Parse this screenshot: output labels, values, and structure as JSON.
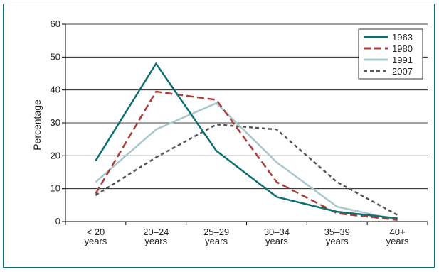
{
  "chart_data": {
    "type": "line",
    "categories": [
      "< 20 years",
      "20–24 years",
      "25–29 years",
      "30–34 years",
      "35–39 years",
      "40+ years"
    ],
    "category_lines": [
      [
        "< 20",
        "years"
      ],
      [
        "20–24",
        "years"
      ],
      [
        "25–29",
        "years"
      ],
      [
        "30–34",
        "years"
      ],
      [
        "35–39",
        "years"
      ],
      [
        "40+",
        "years"
      ]
    ],
    "ylabel": "Percentage",
    "xlabel": "",
    "title": "",
    "ylim": [
      0,
      60
    ],
    "yticks": [
      0,
      10,
      20,
      30,
      40,
      50,
      60
    ],
    "grid": "horizontal",
    "legend_position": "top-right",
    "series": [
      {
        "name": "1963",
        "values": [
          18.5,
          48,
          21.5,
          7.5,
          3,
          1
        ],
        "color": "#0f6e6e",
        "style": "solid"
      },
      {
        "name": "1980",
        "values": [
          8.5,
          39.5,
          37,
          12,
          2.5,
          0.5
        ],
        "color": "#a83e3a",
        "style": "dashed"
      },
      {
        "name": "1991",
        "values": [
          12,
          28,
          36,
          18,
          4.5,
          0.5
        ],
        "color": "#a9c7cd",
        "style": "solid"
      },
      {
        "name": "2007",
        "values": [
          8,
          19.5,
          29.5,
          28,
          12,
          2
        ],
        "color": "#555555",
        "style": "dotted"
      }
    ]
  }
}
